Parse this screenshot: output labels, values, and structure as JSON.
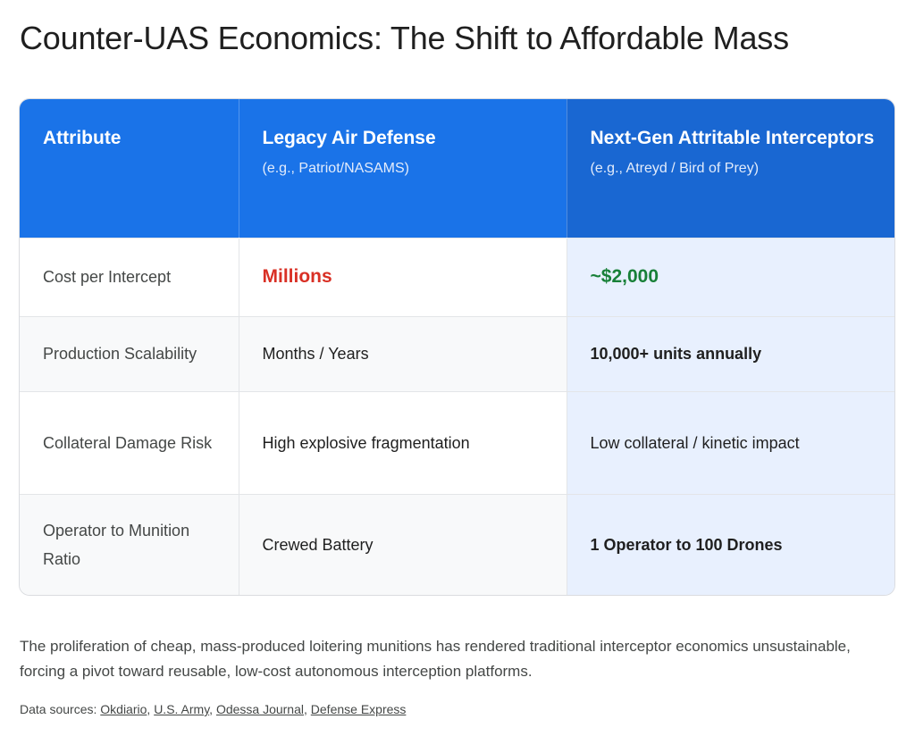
{
  "title": "Counter-UAS Economics: The Shift to Affordable Mass",
  "table": {
    "headers": [
      {
        "label": "Attribute",
        "sub": ""
      },
      {
        "label": "Legacy Air Defense",
        "sub": "(e.g., Patriot/NASAMS)"
      },
      {
        "label": "Next-Gen Attritable Interceptors",
        "sub": "(e.g., Atreyd / Bird of Prey)"
      }
    ],
    "rows": [
      {
        "attribute": "Cost per Intercept",
        "legacy": "Millions",
        "nextgen": "~$2,000"
      },
      {
        "attribute": "Production Scalability",
        "legacy": "Months / Years",
        "nextgen": "10,000+ units annually"
      },
      {
        "attribute": "Collateral Damage Risk",
        "legacy": "High explosive fragmentation",
        "nextgen": "Low collateral / kinetic impact"
      },
      {
        "attribute": "Operator to Munition Ratio",
        "legacy": "Crewed Battery",
        "nextgen": "1 Operator to 100 Drones"
      }
    ]
  },
  "summary": "The proliferation of cheap, mass-produced loitering munitions has rendered traditional interceptor economics unsustainable, forcing a pivot toward reusable, low-cost autonomous interception platforms.",
  "sources": {
    "prefix": "Data sources:",
    "links": [
      "Okdiario",
      "U.S. Army",
      "Odessa Journal",
      "Defense Express"
    ]
  },
  "colors": {
    "header_bg": "#1a73e8",
    "header_bg_highlight": "#1967d2",
    "highlight_column_bg": "#e8f0fe",
    "negative": "#d93025",
    "positive": "#188038"
  }
}
